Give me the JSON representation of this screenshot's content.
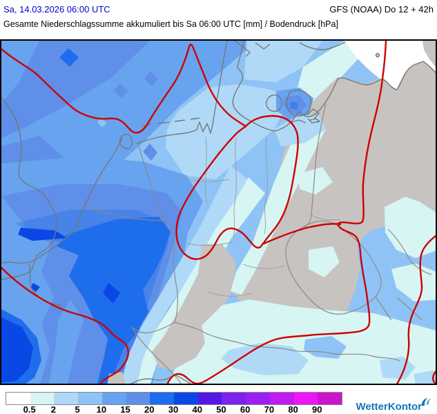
{
  "header": {
    "valid_datetime": "Sa, 14.03.2026 06:00 UTC",
    "model_run": "GFS (NOAA) Do 12 + 42h",
    "map_title": "Gesamte Niederschlagssumme akkumuliert bis Sa 06:00 UTC [mm] / Bodendruck [hPa]",
    "datetime_color": "#0000CC"
  },
  "map": {
    "kind": "precipitation-accumulation-with-surface-pressure",
    "region": "Central Europe / Germany",
    "colors": {
      "dry_land": "#C7C3C1",
      "dry_sea": "#FFFFFF",
      "isobar": "#CE0000",
      "coastline": "#777777",
      "country_border": "#8A8A8A",
      "state_border": "#9A9A9A"
    }
  },
  "legend": {
    "unit": "mm",
    "tick_labels": [
      "0.5",
      "2",
      "5",
      "10",
      "15",
      "20",
      "30",
      "40",
      "50",
      "60",
      "70",
      "80",
      "90"
    ],
    "colors": [
      "#FFFFFF",
      "#D6F5F3",
      "#AFD9F7",
      "#8FC3F5",
      "#68A3EF",
      "#5F8FE9",
      "#1E6DEC",
      "#0A47E5",
      "#5417E6",
      "#7B22EF",
      "#9C1FF2",
      "#C01BF2",
      "#EE15F7",
      "#CC13CE"
    ]
  },
  "logo": {
    "text": "WetterKontor",
    "color": "#1477B4"
  }
}
